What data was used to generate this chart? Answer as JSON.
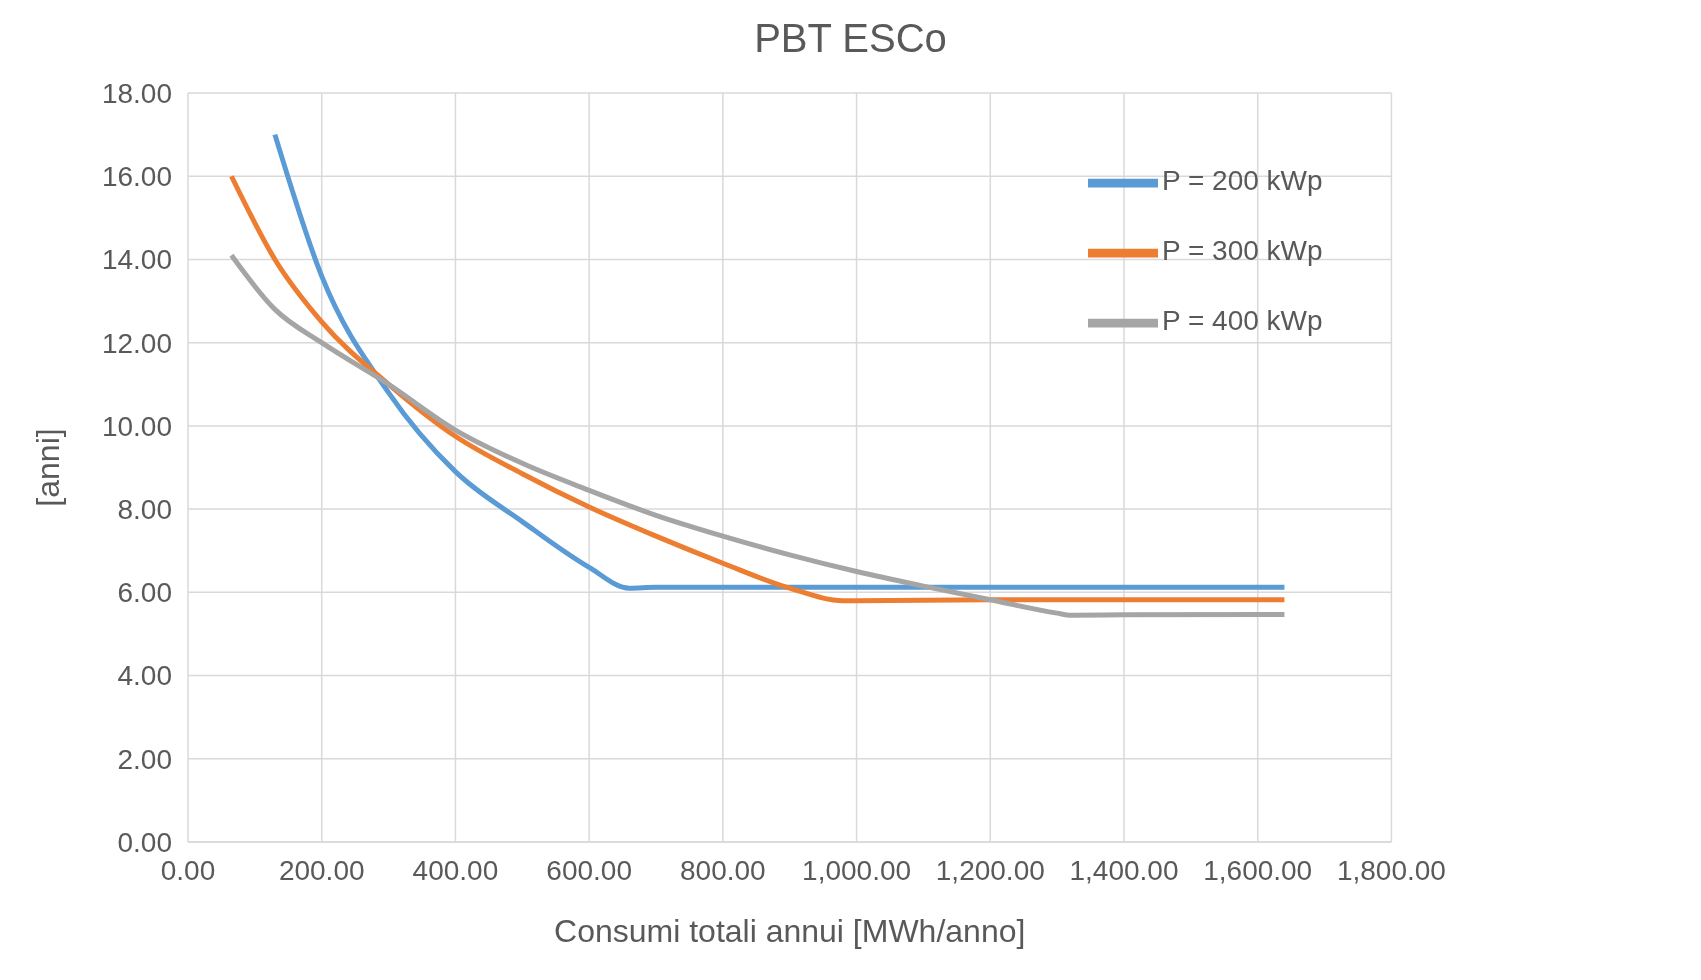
{
  "chart_data": {
    "type": "line",
    "title": "PBT ESCo",
    "xlabel": "Consumi totali annui [MWh/anno]",
    "ylabel": "[anni]",
    "xlim": [
      0,
      1800
    ],
    "xticks": [
      {
        "value": 0,
        "label": "0.00"
      },
      {
        "value": 200,
        "label": "200.00"
      },
      {
        "value": 400,
        "label": "400.00"
      },
      {
        "value": 600,
        "label": "600.00"
      },
      {
        "value": 800,
        "label": "800.00"
      },
      {
        "value": 1000,
        "label": "1,000.00"
      },
      {
        "value": 1200,
        "label": "1,200.00"
      },
      {
        "value": 1400,
        "label": "1,400.00"
      },
      {
        "value": 1600,
        "label": "1,600.00"
      },
      {
        "value": 1800,
        "label": "1,800.00"
      }
    ],
    "ylim": [
      0,
      18
    ],
    "yticks": [
      {
        "value": 0,
        "label": "0.00"
      },
      {
        "value": 2,
        "label": "2.00"
      },
      {
        "value": 4,
        "label": "4.00"
      },
      {
        "value": 6,
        "label": "6.00"
      },
      {
        "value": 8,
        "label": "8.00"
      },
      {
        "value": 10,
        "label": "10.00"
      },
      {
        "value": 12,
        "label": "12.00"
      },
      {
        "value": 14,
        "label": "14.00"
      },
      {
        "value": 16,
        "label": "16.00"
      },
      {
        "value": 18,
        "label": "18.00"
      }
    ],
    "grid": true,
    "legend": "top right",
    "marker": "none",
    "line_style": "solid",
    "series": [
      {
        "name": "P = 200 kWp",
        "color": "#5b9bd5",
        "x": [
          130,
          200,
          300,
          400,
          500,
          600,
          660,
          700,
          800,
          1000,
          1200,
          1400,
          1640
        ],
        "values": [
          17,
          13.6,
          10.8,
          8.9,
          7.7,
          6.6,
          6.1,
          6.12,
          6.12,
          6.12,
          6.12,
          6.12,
          6.12
        ]
      },
      {
        "name": "P = 300 kWp",
        "color": "#ed7d31",
        "x": [
          65,
          130,
          200,
          300,
          400,
          500,
          600,
          700,
          800,
          900,
          980,
          1000,
          1200,
          1400,
          1640
        ],
        "values": [
          16,
          14,
          12.5,
          11,
          9.75,
          8.85,
          8.05,
          7.35,
          6.7,
          6.1,
          5.8,
          5.8,
          5.82,
          5.82,
          5.82
        ]
      },
      {
        "name": "P = 400 kWp",
        "color": "#a5a5a5",
        "x": [
          65,
          130,
          200,
          300,
          400,
          500,
          600,
          700,
          800,
          900,
          1000,
          1100,
          1200,
          1300,
          1320,
          1400,
          1640
        ],
        "values": [
          14.1,
          12.8,
          12,
          11,
          9.9,
          9.1,
          8.45,
          7.85,
          7.35,
          6.9,
          6.5,
          6.15,
          5.82,
          5.5,
          5.45,
          5.46,
          5.47
        ]
      }
    ]
  }
}
